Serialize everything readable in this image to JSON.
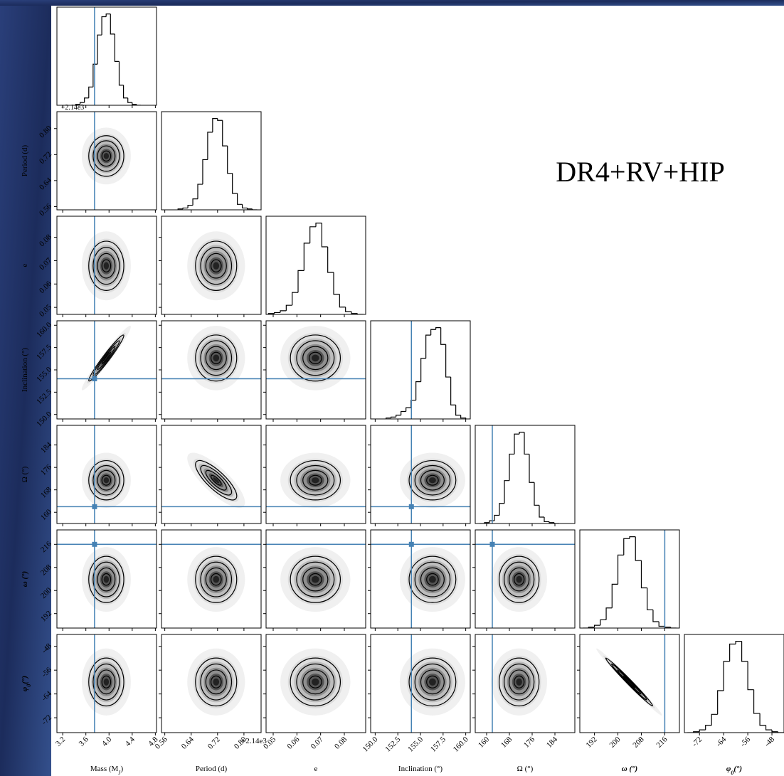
{
  "chart_data": {
    "type": "corner",
    "annotation": "DR4+RV+HIP",
    "truth_color": "#4682b4",
    "params": [
      {
        "label": [
          "Mass (M",
          "J",
          ")"
        ],
        "lim": [
          3.1,
          4.82
        ],
        "ticks": [
          3.2,
          3.6,
          {
            "value": 4,
            "label": "4.0"
          },
          4.4,
          4.8
        ],
        "truth": 3.75,
        "bins": [
          3.35,
          3.425,
          3.5,
          3.575,
          3.65,
          3.725,
          3.8,
          3.875,
          3.95,
          4.025,
          4.1,
          4.175,
          4.25,
          4.325,
          4.4,
          4.475,
          4.55
        ],
        "counts": [
          0,
          1,
          3,
          8,
          20,
          45,
          77,
          97,
          100,
          78,
          48,
          22,
          8,
          3,
          1,
          0
        ]
      },
      {
        "label": [
          "Period (d)"
        ],
        "lim": [
          0.55,
          0.852
        ],
        "ticks": [
          0.56,
          0.64,
          0.72,
          {
            "value": 0.8,
            "label": "0.80"
          }
        ],
        "offset": "+2.14e3",
        "bins": [
          0.6,
          0.615,
          0.63,
          0.645,
          0.66,
          0.675,
          0.69,
          0.705,
          0.72,
          0.735,
          0.75,
          0.765,
          0.78,
          0.795,
          0.81,
          0.825,
          0.84
        ],
        "counts": [
          1,
          2,
          5,
          12,
          28,
          55,
          85,
          100,
          98,
          70,
          40,
          18,
          6,
          2,
          1,
          0
        ]
      },
      {
        "label": [
          "e"
        ],
        "lim": [
          0.047,
          0.089
        ],
        "ticks": [
          0.05,
          0.06,
          0.07,
          0.08
        ],
        "bins": [
          0.048,
          0.0505,
          0.053,
          0.0555,
          0.058,
          0.0605,
          0.063,
          0.0655,
          0.068,
          0.0705,
          0.073,
          0.0755,
          0.078,
          0.0805,
          0.083,
          0.0855,
          0.088
        ],
        "counts": [
          1,
          2,
          4,
          10,
          24,
          48,
          78,
          96,
          100,
          74,
          46,
          22,
          8,
          3,
          1,
          0
        ]
      },
      {
        "label": [
          "Inclination (°)"
        ],
        "lim": [
          149.5,
          160.5
        ],
        "ticks": [
          {
            "value": 150,
            "label": "150.0"
          },
          152.5,
          {
            "value": 155,
            "label": "155.0"
          },
          157.5,
          {
            "value": 160,
            "label": "160.0"
          }
        ],
        "truth": 154,
        "bins": [
          151.2,
          151.75,
          152.3,
          152.85,
          153.4,
          153.95,
          154.5,
          155.05,
          155.6,
          156.15,
          156.7,
          157.25,
          157.8,
          158.35,
          158.9,
          159.45,
          160.0
        ],
        "counts": [
          1,
          2,
          4,
          8,
          12,
          20,
          40,
          65,
          90,
          96,
          98,
          80,
          45,
          15,
          4,
          1
        ]
      },
      {
        "label": [
          "Ω (°)"
        ],
        "lim": [
          156,
          191
        ],
        "ticks": [
          160,
          168,
          176,
          184
        ],
        "truth": 162,
        "bins": [
          157.5,
          159.25,
          161,
          162.75,
          164.5,
          166.25,
          168,
          169.75,
          171.5,
          173.25,
          175,
          176.75,
          178.5,
          180.25,
          182,
          183.75,
          185.5
        ],
        "counts": [
          0,
          1,
          3,
          9,
          22,
          47,
          76,
          98,
          100,
          76,
          45,
          20,
          7,
          2,
          1,
          0
        ]
      },
      {
        "label": [
          "ω (°)"
        ],
        "lim": [
          187,
          221
        ],
        "ticks": [
          192,
          200,
          208,
          216
        ],
        "truth": 216,
        "bins": [
          188,
          190,
          192,
          194,
          196,
          198,
          200,
          202,
          204,
          206,
          208,
          210,
          212,
          214,
          216,
          218,
          220
        ],
        "counts": [
          0,
          1,
          3,
          9,
          22,
          48,
          80,
          98,
          100,
          74,
          44,
          20,
          7,
          2,
          1,
          0
        ]
      },
      {
        "label": [
          "φ",
          "0",
          "(°)"
        ],
        "lim": [
          -77,
          -44
        ],
        "ticks": [
          -72,
          -64,
          -56,
          -48
        ],
        "bins": [
          -76,
          -74,
          -72,
          -70,
          -68,
          -66,
          -64,
          -62,
          -60,
          -58,
          -56,
          -54,
          -52,
          -50,
          -48,
          -46,
          -44
        ],
        "counts": [
          0,
          1,
          3,
          8,
          20,
          46,
          78,
          97,
          100,
          78,
          47,
          21,
          8,
          3,
          1,
          0
        ]
      }
    ],
    "correlations": [
      {
        "params": [
          0,
          3
        ],
        "value": 0.97
      },
      {
        "params": [
          1,
          4
        ],
        "value": -0.8
      },
      {
        "params": [
          5,
          6
        ],
        "value": -0.99
      }
    ]
  }
}
